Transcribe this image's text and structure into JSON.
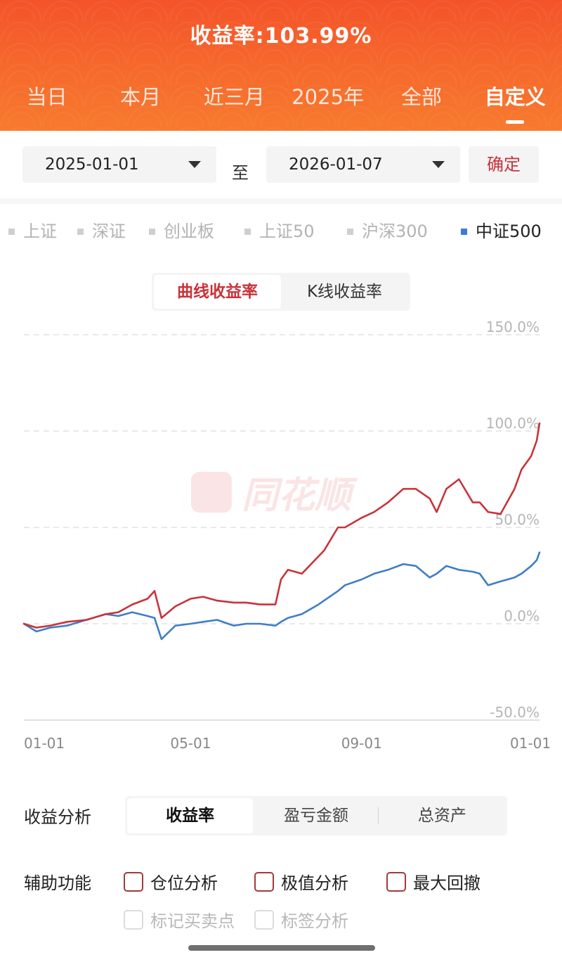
{
  "header": {
    "title": "收益率:103.99%",
    "tabs": [
      "当日",
      "本月",
      "近三月",
      "2025年",
      "全部",
      "自定义"
    ],
    "active_tab": 5
  },
  "date_range": {
    "start": "2025-01-01",
    "separator": "至",
    "end": "2026-01-07",
    "confirm_label": "确定"
  },
  "indices": {
    "items": [
      "上证",
      "深证",
      "创业板",
      "上证50",
      "沪深300",
      "中证500"
    ],
    "active": 5
  },
  "chart_toggle": {
    "options": [
      "曲线收益率",
      "K线收益率"
    ],
    "active": 0
  },
  "watermark_text": "同花顺",
  "chart_data": {
    "type": "line",
    "x_range": [
      "2025-01-01",
      "2026-01-07"
    ],
    "xticks": [
      "01-01",
      "05-01",
      "09-01",
      "01-01"
    ],
    "xtick_values": [
      "2025-01-01",
      "2025-05-01",
      "2025-09-01",
      "2026-01-01"
    ],
    "yticks": [
      "150.0%",
      "100.0%",
      "50.0%",
      "0.0%",
      "-50.0%"
    ],
    "ytick_values": [
      150,
      100,
      50,
      0,
      -50
    ],
    "ylim": [
      -50,
      150
    ],
    "grid": true,
    "colors": {
      "portfolio": "#c8343b",
      "index": "#3f7ec7"
    },
    "series": [
      {
        "name": "",
        "x": [
          "2025-01-01",
          "2025-01-10",
          "2025-01-20",
          "2025-02-01",
          "2025-02-15",
          "2025-03-01",
          "2025-03-10",
          "2025-03-20",
          "2025-03-31",
          "2025-04-05",
          "2025-04-10",
          "2025-04-20",
          "2025-05-01",
          "2025-05-10",
          "2025-05-20",
          "2025-06-01",
          "2025-06-10",
          "2025-06-20",
          "2025-07-01",
          "2025-07-05",
          "2025-07-10",
          "2025-07-20",
          "2025-08-01",
          "2025-08-05",
          "2025-08-15",
          "2025-08-20",
          "2025-09-01",
          "2025-09-10",
          "2025-09-20",
          "2025-10-01",
          "2025-10-10",
          "2025-10-20",
          "2025-10-25",
          "2025-11-01",
          "2025-11-10",
          "2025-11-20",
          "2025-11-25",
          "2025-12-01",
          "2025-12-10",
          "2025-12-20",
          "2025-12-25",
          "2026-01-01",
          "2026-01-05",
          "2026-01-07"
        ],
        "values": [
          0,
          -2,
          -1,
          1,
          2,
          5,
          6,
          10,
          13,
          17,
          3,
          9,
          13,
          14,
          12,
          11,
          11,
          10,
          10,
          23,
          28,
          26,
          35,
          38,
          50,
          50,
          55,
          58,
          63,
          70,
          70,
          65,
          58,
          70,
          75,
          63,
          63,
          58,
          57,
          70,
          80,
          87,
          95,
          104
        ]
      },
      {
        "name": "中证500",
        "x": [
          "2025-01-01",
          "2025-01-10",
          "2025-01-20",
          "2025-02-01",
          "2025-02-15",
          "2025-03-01",
          "2025-03-10",
          "2025-03-20",
          "2025-03-31",
          "2025-04-05",
          "2025-04-10",
          "2025-04-20",
          "2025-05-01",
          "2025-05-10",
          "2025-05-20",
          "2025-06-01",
          "2025-06-10",
          "2025-06-20",
          "2025-07-01",
          "2025-07-05",
          "2025-07-10",
          "2025-07-20",
          "2025-08-01",
          "2025-08-05",
          "2025-08-15",
          "2025-08-20",
          "2025-09-01",
          "2025-09-10",
          "2025-09-20",
          "2025-10-01",
          "2025-10-10",
          "2025-10-20",
          "2025-10-25",
          "2025-11-01",
          "2025-11-10",
          "2025-11-20",
          "2025-11-25",
          "2025-12-01",
          "2025-12-10",
          "2025-12-20",
          "2025-12-25",
          "2026-01-01",
          "2026-01-05",
          "2026-01-07"
        ],
        "values": [
          0,
          -4,
          -2,
          -1,
          2,
          5,
          4,
          6,
          4,
          3,
          -8,
          -1,
          0,
          1,
          2,
          -1,
          0,
          0,
          -1,
          1,
          3,
          5,
          10,
          12,
          17,
          20,
          23,
          26,
          28,
          31,
          30,
          24,
          26,
          30,
          28,
          27,
          26,
          20,
          22,
          24,
          26,
          30,
          33,
          37
        ]
      }
    ]
  },
  "analysis": {
    "label": "收益分析",
    "options": [
      "收益率",
      "盈亏金额",
      "总资产"
    ],
    "active": 0
  },
  "aux": {
    "label": "辅助功能",
    "options": [
      "仓位分析",
      "极值分析",
      "最大回撤"
    ],
    "disabled_options": [
      "标记买卖点",
      "标签分析"
    ]
  }
}
